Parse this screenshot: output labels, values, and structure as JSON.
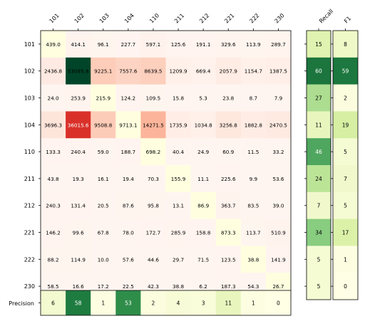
{
  "chart_data": {
    "type": "heatmap",
    "categories": [
      "101",
      "102",
      "103",
      "104",
      "110",
      "211",
      "212",
      "221",
      "222",
      "230"
    ],
    "rows": [
      "101",
      "102",
      "103",
      "104",
      "110",
      "211",
      "212",
      "221",
      "222",
      "230"
    ],
    "values": [
      [
        439.0,
        414.1,
        96.1,
        227.7,
        597.1,
        125.6,
        191.1,
        329.6,
        113.9,
        289.7
      ],
      [
        2436.8,
        53095.8,
        9225.1,
        7557.6,
        8639.5,
        1209.9,
        669.4,
        2057.9,
        1154.7,
        1387.5
      ],
      [
        24.0,
        253.9,
        215.9,
        124.2,
        109.5,
        15.8,
        5.3,
        23.8,
        8.7,
        7.9
      ],
      [
        3696.3,
        36015.6,
        9508.8,
        9713.1,
        14271.5,
        1735.9,
        1034.8,
        3256.8,
        1882.8,
        2470.5
      ],
      [
        133.3,
        240.4,
        59.0,
        188.7,
        698.2,
        40.4,
        24.9,
        60.9,
        11.5,
        33.2
      ],
      [
        43.8,
        19.3,
        16.1,
        19.4,
        70.3,
        155.9,
        11.1,
        225.6,
        9.9,
        53.6
      ],
      [
        240.3,
        131.4,
        20.5,
        87.6,
        95.8,
        13.1,
        86.9,
        363.7,
        83.5,
        39.0
      ],
      [
        146.2,
        99.6,
        67.8,
        78.0,
        172.7,
        285.9,
        158.8,
        873.3,
        113.7,
        510.9
      ],
      [
        88.2,
        114.9,
        10.0,
        57.6,
        44.6,
        29.7,
        71.5,
        123.5,
        38.8,
        141.9
      ],
      [
        58.5,
        16.6,
        17.2,
        22.5,
        42.3,
        38.8,
        6.2,
        187.3,
        54.3,
        26.7
      ]
    ],
    "value_labels": [
      [
        "439.0",
        "414.1",
        "96.1",
        "227.7",
        "597.1",
        "125.6",
        "191.1",
        "329.6",
        "113.9",
        "289.7"
      ],
      [
        "2436.8",
        "53095.8",
        "9225.1",
        "7557.6",
        "8639.5",
        "1209.9",
        "669.4",
        "2057.9",
        "1154.7",
        "1387.5"
      ],
      [
        "24.0",
        "253.9",
        "215.9",
        "124.2",
        "109.5",
        "15.8",
        "5.3",
        "23.8",
        "8.7",
        "7.9"
      ],
      [
        "3696.3",
        "36015.6",
        "9508.8",
        "9713.1",
        "14271.5",
        "1735.9",
        "1034.8",
        "3256.8",
        "1882.8",
        "2470.5"
      ],
      [
        "133.3",
        "240.4",
        "59.0",
        "188.7",
        "698.2",
        "40.4",
        "24.9",
        "60.9",
        "11.5",
        "33.2"
      ],
      [
        "43.8",
        "19.3",
        "16.1",
        "19.4",
        "70.3",
        "155.9",
        "11.1",
        "225.6",
        "9.9",
        "53.6"
      ],
      [
        "240.3",
        "131.4",
        "20.5",
        "87.6",
        "95.8",
        "13.1",
        "86.9",
        "363.7",
        "83.5",
        "39.0"
      ],
      [
        "146.2",
        "99.6",
        "67.8",
        "78.0",
        "172.7",
        "285.9",
        "158.8",
        "873.3",
        "113.7",
        "510.9"
      ],
      [
        "88.2",
        "114.9",
        "10.0",
        "57.6",
        "44.6",
        "29.7",
        "71.5",
        "123.5",
        "38.8",
        "141.9"
      ],
      [
        "58.5",
        "16.6",
        "17.2",
        "22.5",
        "42.3",
        "38.8",
        "6.2",
        "187.3",
        "54.3",
        "26.7"
      ]
    ],
    "colormap": [
      "#fff5f0",
      "#fcbba1",
      "#fb6a4a",
      "#cb181d"
    ],
    "colormap_green": [
      "#ffffe5",
      "#d9f0a3",
      "#78c679",
      "#238443",
      "#004529"
    ],
    "recall": {
      "label": "Recall",
      "values": [
        15,
        60,
        27,
        11,
        46,
        24,
        7,
        34,
        5,
        5
      ]
    },
    "f1": {
      "label": "F1",
      "values": [
        8,
        59,
        2,
        19,
        5,
        7,
        5,
        17,
        1,
        0
      ]
    },
    "precision": {
      "label": "Precision",
      "values": [
        6,
        58,
        1,
        53,
        2,
        4,
        3,
        11,
        1,
        0
      ]
    }
  }
}
